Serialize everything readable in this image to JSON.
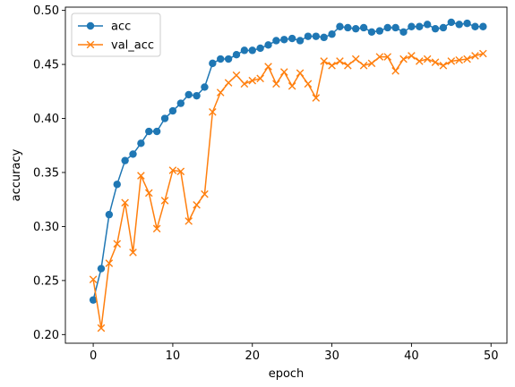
{
  "chart_data": {
    "type": "line",
    "xlabel": "epoch",
    "ylabel": "accuracy",
    "xlim": [
      -3.5,
      52.0
    ],
    "ylim": [
      0.192,
      0.503
    ],
    "xticks": [
      0,
      10,
      20,
      30,
      40,
      50
    ],
    "xtick_labels": [
      "0",
      "10",
      "20",
      "30",
      "40",
      "50"
    ],
    "yticks": [
      0.2,
      0.25,
      0.3,
      0.35,
      0.4,
      0.45,
      0.5
    ],
    "ytick_labels": [
      "0.20",
      "0.25",
      "0.30",
      "0.35",
      "0.40",
      "0.45",
      "0.50"
    ],
    "grid": false,
    "legend_position": "top-left",
    "x": [
      0,
      1,
      2,
      3,
      4,
      5,
      6,
      7,
      8,
      9,
      10,
      11,
      12,
      13,
      14,
      15,
      16,
      17,
      18,
      19,
      20,
      21,
      22,
      23,
      24,
      25,
      26,
      27,
      28,
      29,
      30,
      31,
      32,
      33,
      34,
      35,
      36,
      37,
      38,
      39,
      40,
      41,
      42,
      43,
      44,
      45,
      46,
      47,
      48,
      49
    ],
    "series": [
      {
        "name": "acc",
        "color": "#1f77b4",
        "marker": "circle",
        "values": [
          0.232,
          0.261,
          0.311,
          0.339,
          0.361,
          0.367,
          0.377,
          0.388,
          0.388,
          0.4,
          0.407,
          0.414,
          0.422,
          0.421,
          0.429,
          0.451,
          0.455,
          0.455,
          0.459,
          0.463,
          0.463,
          0.465,
          0.468,
          0.472,
          0.473,
          0.474,
          0.472,
          0.476,
          0.476,
          0.475,
          0.478,
          0.485,
          0.484,
          0.483,
          0.484,
          0.48,
          0.481,
          0.484,
          0.484,
          0.48,
          0.485,
          0.485,
          0.487,
          0.483,
          0.484,
          0.489,
          0.487,
          0.488,
          0.485,
          0.485
        ]
      },
      {
        "name": "val_acc",
        "color": "#ff7f0e",
        "marker": "x",
        "values": [
          0.251,
          0.206,
          0.266,
          0.284,
          0.322,
          0.276,
          0.347,
          0.331,
          0.298,
          0.324,
          0.352,
          0.351,
          0.305,
          0.32,
          0.33,
          0.406,
          0.424,
          0.433,
          0.44,
          0.432,
          0.435,
          0.437,
          0.448,
          0.432,
          0.443,
          0.43,
          0.442,
          0.432,
          0.419,
          0.453,
          0.449,
          0.453,
          0.449,
          0.455,
          0.449,
          0.451,
          0.457,
          0.457,
          0.444,
          0.455,
          0.458,
          0.453,
          0.455,
          0.452,
          0.449,
          0.453,
          0.454,
          0.455,
          0.458,
          0.46
        ]
      }
    ]
  }
}
